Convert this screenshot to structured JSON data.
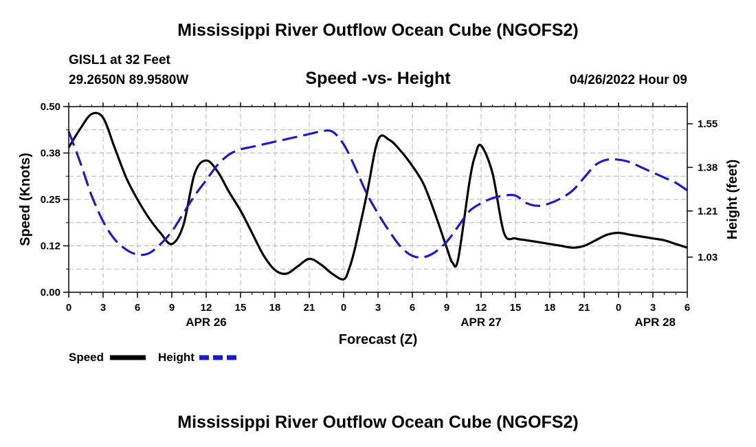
{
  "header": {
    "title": "Mississippi River Outflow Ocean Cube (NGOFS2)",
    "station": "GISL1 at 32 Feet",
    "coordinates": "29.2650N  89.9580W",
    "chart_title": "Speed -vs- Height",
    "run_time": "04/26/2022 Hour 09"
  },
  "footer": {
    "title": "Mississippi River Outflow Ocean Cube (NGOFS2)"
  },
  "colors": {
    "speed": "#000000",
    "height": "#1a1acc",
    "grid": "#b4b4b4"
  },
  "chart_data": {
    "type": "line",
    "title": "Speed -vs- Height",
    "xlabel": "Forecast (Z)",
    "ylabel": "Speed (Knots)",
    "y2label": "Height (feet)",
    "xlim": [
      0,
      54
    ],
    "ylim": [
      0,
      0.5
    ],
    "y2lim": [
      0.893,
      1.617
    ],
    "x_ticks": [
      0,
      3,
      6,
      9,
      12,
      15,
      18,
      21,
      24,
      27,
      30,
      33,
      36,
      39,
      42,
      45,
      48,
      51,
      54
    ],
    "x_tick_labels": [
      "0",
      "3",
      "6",
      "9",
      "12",
      "15",
      "18",
      "21",
      "0",
      "3",
      "6",
      "9",
      "12",
      "15",
      "18",
      "21",
      "0",
      "3",
      "6"
    ],
    "y_ticks": [
      0,
      0.125,
      0.25,
      0.375,
      0.5
    ],
    "y_tick_labels": [
      "0.00",
      "0.12",
      "0.25",
      "0.38",
      "0.50"
    ],
    "y2_ticks": [
      1.03,
      1.21,
      1.38,
      1.55
    ],
    "y2_tick_labels": [
      "1.03",
      "1.21",
      "1.38",
      "1.55"
    ],
    "date_labels": [
      {
        "x": 12,
        "label": "APR 26"
      },
      {
        "x": 36,
        "label": "APR 27"
      },
      {
        "x": 54,
        "label": "APR 28"
      }
    ],
    "grid": true,
    "legend": "bottom-left",
    "series": [
      {
        "name": "Speed",
        "axis": "left",
        "style": "solid",
        "x": [
          0,
          1,
          2,
          3,
          4,
          5,
          6,
          7,
          8,
          9,
          10,
          11,
          12,
          13,
          14,
          15,
          16,
          17,
          18,
          19,
          20,
          21,
          22,
          23,
          24,
          24.5,
          25,
          26,
          27,
          28,
          29,
          30,
          31,
          32,
          33,
          33.5,
          34,
          35,
          35.5,
          36,
          37,
          38,
          39,
          40,
          41,
          42,
          43,
          44,
          45,
          46,
          47,
          48,
          49,
          50,
          51,
          52,
          53,
          54
        ],
        "values": [
          0.39,
          0.44,
          0.48,
          0.47,
          0.39,
          0.31,
          0.25,
          0.2,
          0.16,
          0.13,
          0.18,
          0.32,
          0.355,
          0.325,
          0.27,
          0.22,
          0.16,
          0.1,
          0.06,
          0.05,
          0.07,
          0.09,
          0.075,
          0.05,
          0.035,
          0.065,
          0.12,
          0.26,
          0.41,
          0.41,
          0.38,
          0.34,
          0.29,
          0.21,
          0.12,
          0.08,
          0.09,
          0.3,
          0.37,
          0.395,
          0.32,
          0.16,
          0.145,
          0.14,
          0.135,
          0.13,
          0.125,
          0.12,
          0.125,
          0.14,
          0.155,
          0.16,
          0.155,
          0.15,
          0.145,
          0.14,
          0.13,
          0.12
        ]
      },
      {
        "name": "Height",
        "axis": "right",
        "style": "dashed",
        "x": [
          0,
          1,
          2,
          3,
          4,
          5,
          6,
          7,
          8,
          9,
          10,
          11,
          12,
          13,
          14,
          15,
          16,
          17,
          18,
          19,
          20,
          21,
          22,
          23,
          24,
          25,
          26,
          27,
          28,
          29,
          30,
          31,
          32,
          33,
          34,
          35,
          36,
          37,
          38,
          39,
          40,
          41,
          42,
          43,
          44,
          45,
          46,
          47,
          48,
          49,
          50,
          51,
          52,
          53,
          54
        ],
        "values": [
          1.52,
          1.4,
          1.27,
          1.17,
          1.1,
          1.06,
          1.04,
          1.045,
          1.08,
          1.13,
          1.2,
          1.27,
          1.33,
          1.39,
          1.43,
          1.45,
          1.46,
          1.47,
          1.48,
          1.49,
          1.5,
          1.51,
          1.52,
          1.52,
          1.47,
          1.38,
          1.28,
          1.2,
          1.13,
          1.07,
          1.035,
          1.03,
          1.05,
          1.09,
          1.15,
          1.21,
          1.24,
          1.26,
          1.27,
          1.27,
          1.24,
          1.23,
          1.24,
          1.26,
          1.29,
          1.34,
          1.39,
          1.41,
          1.41,
          1.4,
          1.38,
          1.36,
          1.34,
          1.32,
          1.29
        ]
      }
    ]
  },
  "legend": {
    "speed_label": "Speed",
    "height_label": "Height"
  }
}
